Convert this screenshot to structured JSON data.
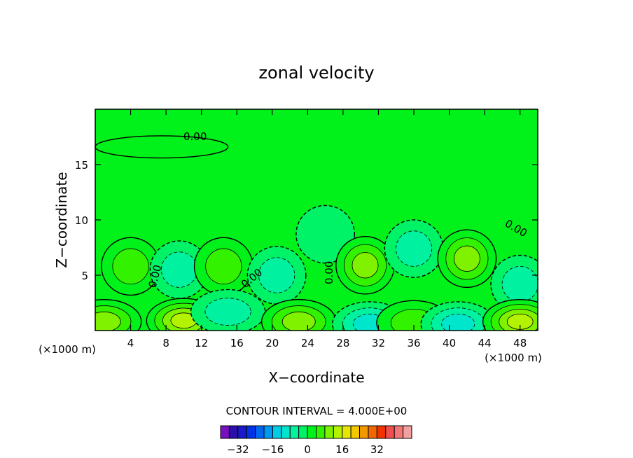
{
  "chart_data": {
    "type": "heatmap",
    "title": "zonal velocity",
    "xlabel": "X−coordinate",
    "ylabel": "Z−coordinate",
    "x_unit_left": "(×1000 m)",
    "x_unit_right": "(×1000 m)",
    "xlim": [
      0,
      50
    ],
    "ylim": [
      0,
      20
    ],
    "x_ticks": [
      4,
      8,
      12,
      16,
      20,
      24,
      28,
      32,
      36,
      40,
      44,
      48
    ],
    "y_ticks": [
      5,
      10,
      15
    ],
    "contour_labels": [
      "0.00",
      "0.00",
      "0.00",
      "0.00",
      "0.00"
    ],
    "contour_interval_text": "CONTOUR INTERVAL = 4.000E+00",
    "colorbar": {
      "tick_labels": [
        "−32",
        "−16",
        "0",
        "16",
        "32"
      ],
      "tick_values": [
        -32,
        -16,
        0,
        16,
        32
      ],
      "colors": [
        "#7a0fbf",
        "#2a0fa8",
        "#1a1acc",
        "#0033e6",
        "#0066f2",
        "#0099f2",
        "#00cce6",
        "#00e6cc",
        "#00f2a0",
        "#00f266",
        "#00f21a",
        "#33f200",
        "#80f200",
        "#b3f200",
        "#e6e600",
        "#f2c800",
        "#f29900",
        "#f26600",
        "#f23300",
        "#f25050",
        "#f27878",
        "#f2a0a0"
      ],
      "value_min": -40,
      "value_max": 48
    },
    "background_color": "#00f21a",
    "features": [
      {
        "kind": "blob",
        "x": 7.5,
        "z": 16.6,
        "value": 2
      },
      {
        "kind": "blob",
        "x": 4.0,
        "z": 5.8,
        "value": 6
      },
      {
        "kind": "blob",
        "x": 9.5,
        "z": 5.5,
        "value": -6
      },
      {
        "kind": "blob",
        "x": 14.5,
        "z": 5.8,
        "value": 8
      },
      {
        "kind": "blob",
        "x": 20.5,
        "z": 5.0,
        "value": -7
      },
      {
        "kind": "blob",
        "x": 26.0,
        "z": 8.7,
        "value": -3
      },
      {
        "kind": "blob",
        "x": 30.5,
        "z": 5.9,
        "value": 11
      },
      {
        "kind": "blob",
        "x": 36.0,
        "z": 7.4,
        "value": -6
      },
      {
        "kind": "blob",
        "x": 42.0,
        "z": 6.5,
        "value": 11
      },
      {
        "kind": "blob",
        "x": 48.0,
        "z": 4.2,
        "value": -8
      },
      {
        "kind": "blob",
        "x": 1.0,
        "z": 0.8,
        "value": 10
      },
      {
        "kind": "blob",
        "x": 10.0,
        "z": 0.9,
        "value": 15
      },
      {
        "kind": "blob",
        "x": 15.0,
        "z": 1.7,
        "value": -6
      },
      {
        "kind": "blob",
        "x": 23.0,
        "z": 0.8,
        "value": 12
      },
      {
        "kind": "blob",
        "x": 31.0,
        "z": 0.6,
        "value": -10
      },
      {
        "kind": "blob",
        "x": 36.0,
        "z": 0.7,
        "value": 7
      },
      {
        "kind": "blob",
        "x": 41.0,
        "z": 0.6,
        "value": -12
      },
      {
        "kind": "blob",
        "x": 48.0,
        "z": 0.8,
        "value": 14
      }
    ]
  }
}
